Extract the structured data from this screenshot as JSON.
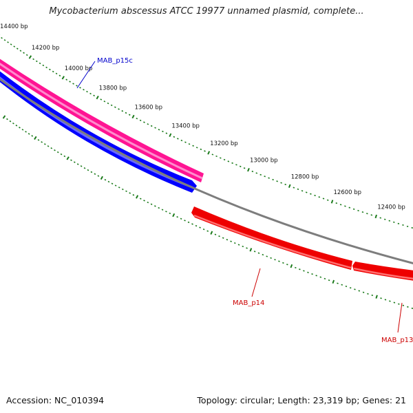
{
  "title": "Mycobacterium abscessus ATCC 19977 unnamed plasmid, complete...",
  "footer": {
    "accession": "Accession: NC_010394",
    "summary": "Topology: circular; Length: 23,319 bp; Genes: 21"
  },
  "colors": {
    "background": "#ffffff",
    "tick": "#1a7a1a",
    "backbone": "#7d7d7d",
    "gene_forward_a": "#ff1493",
    "gene_forward_b": "#0000ff",
    "gene_reverse": "#ee0000"
  },
  "scale": {
    "tick_labels": [
      "14400 bp",
      "14200 bp",
      "14000 bp",
      "13800 bp",
      "13600 bp",
      "13400 bp",
      "13200 bp",
      "13000 bp",
      "12800 bp",
      "12600 bp",
      "12400 bp"
    ]
  },
  "genes": [
    {
      "name": "",
      "strand": "+",
      "color": "#ff1493"
    },
    {
      "name": "MAB_p15c",
      "strand": "+",
      "color": "#0000ff"
    },
    {
      "name": "MAB_p14",
      "strand": "-",
      "color": "#ee0000"
    },
    {
      "name": "MAB_p13",
      "strand": "-",
      "color": "#ee0000"
    }
  ]
}
